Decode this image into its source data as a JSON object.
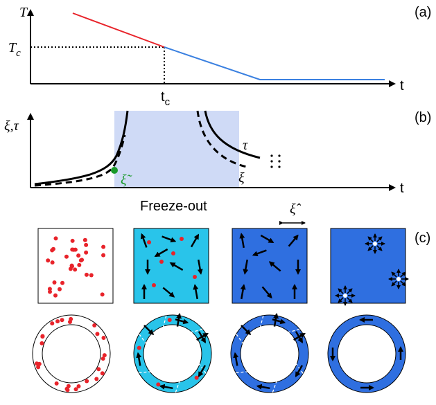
{
  "panel_a": {
    "label": "(a)",
    "y_axis_label": "T",
    "critical_temperature": {
      "main": "T",
      "sub": "c"
    },
    "x_axis_label": "t",
    "critical_time": {
      "main": "t",
      "sub": "c"
    }
  },
  "panel_b": {
    "label": "(b)",
    "y_axis_label": "ξ,τ",
    "x_axis_label": "t",
    "tau_label": "τ",
    "xi_label": "ξ",
    "frozen_xi_label": "ξ̃",
    "region_label": "Freeze-out"
  },
  "panel_c": {
    "label": "(c)",
    "domain_size_label": "ξ̂"
  }
}
